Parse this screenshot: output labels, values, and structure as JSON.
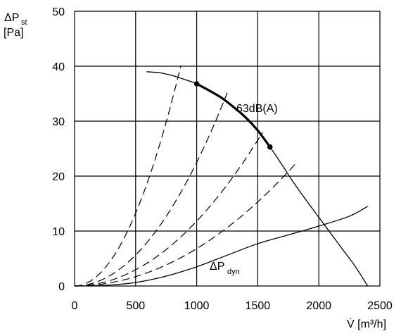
{
  "chart_data": {
    "type": "line",
    "ylabel_symbol": "ΔP",
    "ylabel_sub": "st",
    "ylabel_unit": "[Pa]",
    "xlabel": "V̇ [m³/h]",
    "xlim": [
      0,
      2500
    ],
    "ylim": [
      0,
      50
    ],
    "xticks": [
      0,
      500,
      1000,
      1500,
      2000,
      2500
    ],
    "yticks": [
      0,
      10,
      20,
      30,
      40,
      50
    ],
    "grid": true,
    "fan_curve": {
      "x": [
        590,
        700,
        800,
        900,
        1000,
        1100,
        1200,
        1300,
        1400,
        1500,
        1600,
        1700,
        1800,
        1900,
        2000,
        2100,
        2200,
        2300,
        2400
      ],
      "y": [
        39.0,
        38.8,
        38.3,
        37.6,
        36.8,
        35.6,
        34.3,
        32.6,
        30.7,
        28.3,
        25.3,
        22.0,
        18.6,
        15.5,
        12.5,
        9.5,
        6.5,
        3.5,
        0
      ]
    },
    "operating_range": {
      "label": "63dB(A)",
      "x": [
        1000,
        1100,
        1200,
        1300,
        1400,
        1500,
        1600
      ],
      "y": [
        36.8,
        35.6,
        34.3,
        32.6,
        30.7,
        28.3,
        25.3
      ]
    },
    "operating_points": [
      {
        "x": 1000,
        "y": 36.8
      },
      {
        "x": 1600,
        "y": 25.3
      }
    ],
    "system_curves": [
      {
        "k": 5.3e-05,
        "x_end": 870
      },
      {
        "k": 2.25e-05,
        "x_end": 1250
      },
      {
        "k": 1.18e-05,
        "x_end": 1540
      },
      {
        "k": 6.8e-06,
        "x_end": 1820
      }
    ],
    "dynamic_pressure": {
      "label_symbol": "ΔP",
      "label_sub": "dyn",
      "x": [
        0,
        250,
        500,
        750,
        1000,
        1250,
        1500,
        1750,
        2000,
        2250,
        2400
      ],
      "y": [
        0,
        0.12,
        0.64,
        1.8,
        3.5,
        5.6,
        7.7,
        9.3,
        10.9,
        12.7,
        14.5
      ]
    }
  }
}
